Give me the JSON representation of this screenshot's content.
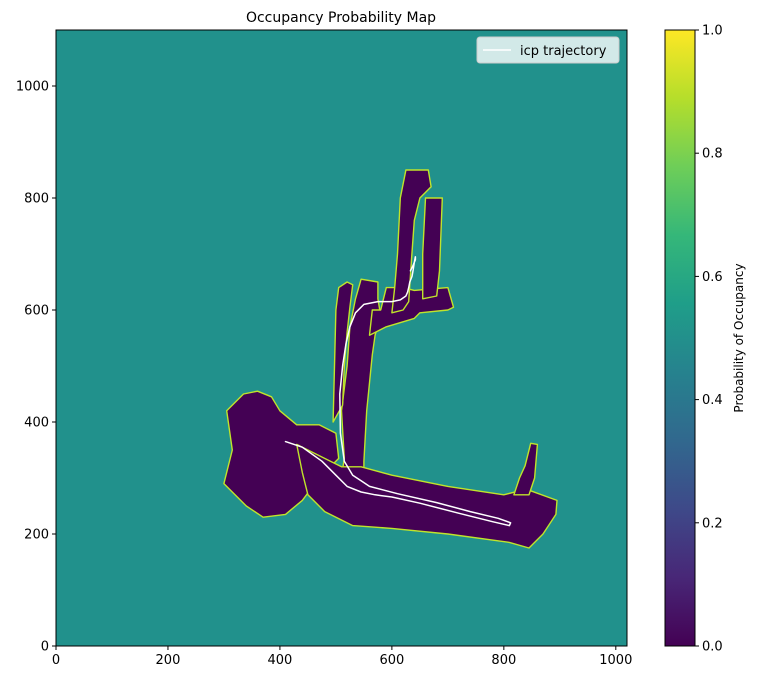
{
  "chart_data": {
    "type": "heatmap",
    "title": "Occupancy Probability Map",
    "xlabel": "",
    "ylabel": "",
    "xlim": [
      0,
      1020
    ],
    "ylim": [
      0,
      1100
    ],
    "x_ticks": [
      0,
      200,
      400,
      600,
      800,
      1000
    ],
    "y_ticks": [
      0,
      200,
      400,
      600,
      800,
      1000
    ],
    "background_probability": 0.5,
    "free_space_probability": 0.0,
    "wall_probability": 0.9,
    "free_space_regions": [
      {
        "name": "lower-left-cluster",
        "polygon": [
          [
            300,
            290
          ],
          [
            315,
            350
          ],
          [
            305,
            420
          ],
          [
            335,
            450
          ],
          [
            360,
            455
          ],
          [
            385,
            445
          ],
          [
            400,
            420
          ],
          [
            430,
            395
          ],
          [
            470,
            395
          ],
          [
            500,
            380
          ],
          [
            505,
            335
          ],
          [
            470,
            300
          ],
          [
            440,
            260
          ],
          [
            410,
            235
          ],
          [
            370,
            230
          ],
          [
            340,
            250
          ]
        ]
      },
      {
        "name": "vertical-corridor",
        "polygon": [
          [
            505,
            270
          ],
          [
            515,
            335
          ],
          [
            510,
            420
          ],
          [
            520,
            500
          ],
          [
            525,
            570
          ],
          [
            535,
            620
          ],
          [
            545,
            655
          ],
          [
            575,
            650
          ],
          [
            575,
            620
          ],
          [
            580,
            590
          ],
          [
            570,
            555
          ],
          [
            565,
            520
          ],
          [
            560,
            470
          ],
          [
            555,
            420
          ],
          [
            550,
            330
          ],
          [
            550,
            280
          ]
        ]
      },
      {
        "name": "left-spur",
        "polygon": [
          [
            495,
            400
          ],
          [
            500,
            600
          ],
          [
            505,
            640
          ],
          [
            520,
            650
          ],
          [
            530,
            645
          ],
          [
            525,
            605
          ],
          [
            520,
            560
          ],
          [
            515,
            500
          ],
          [
            512,
            430
          ]
        ]
      },
      {
        "name": "horizontal-corridor",
        "polygon": [
          [
            430,
            360
          ],
          [
            470,
            340
          ],
          [
            510,
            320
          ],
          [
            545,
            320
          ],
          [
            600,
            305
          ],
          [
            700,
            285
          ],
          [
            800,
            270
          ],
          [
            840,
            280
          ],
          [
            895,
            260
          ],
          [
            893,
            235
          ],
          [
            870,
            200
          ],
          [
            845,
            175
          ],
          [
            810,
            185
          ],
          [
            700,
            200
          ],
          [
            600,
            210
          ],
          [
            530,
            215
          ],
          [
            480,
            240
          ],
          [
            450,
            270
          ],
          [
            440,
            310
          ]
        ]
      },
      {
        "name": "right-mast",
        "polygon": [
          [
            818,
            270
          ],
          [
            845,
            270
          ],
          [
            855,
            300
          ],
          [
            860,
            360
          ],
          [
            848,
            362
          ],
          [
            838,
            322
          ],
          [
            828,
            300
          ]
        ]
      },
      {
        "name": "upper-block",
        "polygon": [
          [
            560,
            555
          ],
          [
            565,
            600
          ],
          [
            580,
            600
          ],
          [
            590,
            640
          ],
          [
            620,
            640
          ],
          [
            640,
            635
          ],
          [
            700,
            640
          ],
          [
            710,
            605
          ],
          [
            700,
            600
          ],
          [
            650,
            595
          ],
          [
            640,
            585
          ],
          [
            590,
            570
          ]
        ]
      },
      {
        "name": "upper-tower",
        "polygon": [
          [
            600,
            595
          ],
          [
            620,
            600
          ],
          [
            630,
            615
          ],
          [
            635,
            690
          ],
          [
            640,
            760
          ],
          [
            650,
            800
          ],
          [
            670,
            820
          ],
          [
            665,
            850
          ],
          [
            625,
            850
          ],
          [
            615,
            800
          ],
          [
            610,
            700
          ],
          [
            605,
            640
          ]
        ]
      },
      {
        "name": "upper-tower-side",
        "polygon": [
          [
            655,
            620
          ],
          [
            680,
            625
          ],
          [
            685,
            670
          ],
          [
            690,
            800
          ],
          [
            660,
            800
          ],
          [
            655,
            700
          ]
        ]
      }
    ],
    "series": [
      {
        "name": "icp trajectory",
        "type": "line",
        "color": "#ffffff",
        "x": [
          410,
          440,
          475,
          500,
          520,
          545,
          570,
          600,
          650,
          720,
          780,
          810,
          812,
          790,
          740,
          680,
          610,
          560,
          545,
          530,
          515,
          508,
          507,
          512,
          518,
          525,
          535,
          550,
          575,
          600,
          615,
          625,
          628,
          630,
          632,
          636,
          638,
          640,
          642,
          642,
          638,
          633
        ],
        "y": [
          365,
          355,
          330,
          305,
          285,
          275,
          270,
          266,
          255,
          237,
          222,
          215,
          220,
          228,
          240,
          256,
          272,
          285,
          295,
          305,
          330,
          380,
          450,
          500,
          540,
          570,
          595,
          610,
          615,
          615,
          618,
          625,
          632,
          640,
          650,
          660,
          672,
          685,
          695,
          690,
          680,
          670
        ]
      }
    ],
    "legend": {
      "entries": [
        "icp trajectory"
      ],
      "placement": "top-right"
    },
    "colorbar": {
      "label": "Probability of Occupancy",
      "range": [
        0.0,
        1.0
      ],
      "ticks": [
        "0.0",
        "0.2",
        "0.4",
        "0.6",
        "0.8",
        "1.0"
      ],
      "colormap": [
        "#440154",
        "#482777",
        "#3e4989",
        "#31688e",
        "#26828e",
        "#1f9e89",
        "#35b779",
        "#6ece58",
        "#b5de2b",
        "#fde725"
      ]
    }
  },
  "colors": {
    "background": "#21918c",
    "free_space": "#440154",
    "wall": "#c0e42b",
    "trajectory": "#ffffff"
  }
}
